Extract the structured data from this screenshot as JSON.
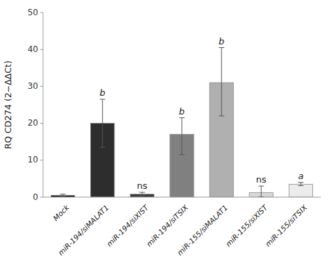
{
  "chart_data": {
    "type": "bar",
    "categories": [
      "Mock",
      "miR-194/siMALAT1",
      "miR-194/siXIST",
      "miR-194/siTSIX",
      "miR-155/siMALAT1",
      "miR-155/siXIST",
      "miR-155/siTSIX"
    ],
    "values": [
      0.5,
      20.0,
      0.8,
      17.0,
      31.0,
      1.2,
      3.5
    ],
    "error_upper": [
      0.3,
      6.5,
      0.5,
      4.5,
      9.5,
      1.8,
      0.5
    ],
    "error_lower": [
      0.3,
      6.5,
      0.4,
      5.5,
      9.0,
      1.1,
      0.4
    ],
    "colors": [
      "#111111",
      "#2d2d2d",
      "#3a3a3a",
      "#808080",
      "#b0b0b0",
      "#d8d8d8",
      "#ececec"
    ],
    "significance": [
      null,
      "b",
      "ns",
      "b",
      "b",
      "ns",
      "a"
    ],
    "ylabel": "RQ CD274 (2−ΔΔCt)",
    "ylim": [
      0,
      50
    ],
    "yticks": [
      0,
      10,
      20,
      30,
      40,
      50
    ],
    "grid": false
  }
}
